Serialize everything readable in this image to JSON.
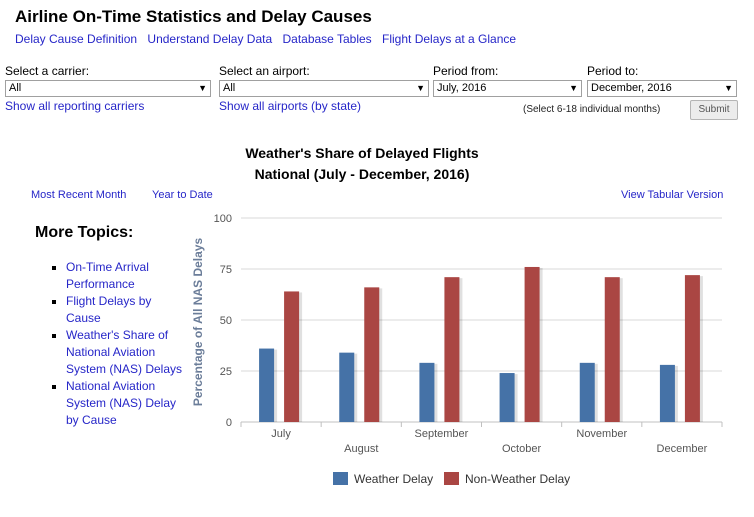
{
  "page_title": "Airline On-Time Statistics and Delay Causes",
  "nav_links": [
    "Delay Cause Definition",
    "Understand Delay Data",
    "Database Tables",
    "Flight Delays at a Glance"
  ],
  "filters": {
    "carrier_label": "Select a carrier:",
    "carrier_value": "All",
    "show_carriers_link": "Show all reporting carriers",
    "airport_label": "Select an airport:",
    "airport_value": "All",
    "show_airports_link": "Show all airports (by state)",
    "period_from_label": "Period from:",
    "period_from_value": "July, 2016",
    "period_to_label": "Period to:",
    "period_to_value": "December, 2016",
    "hint": "(Select 6-18 individual months)",
    "submit_label": "Submit"
  },
  "chart_heading": {
    "line1": "Weather's Share of Delayed Flights",
    "line2": "National (July - December, 2016)"
  },
  "sub_nav": {
    "recent": "Most Recent Month",
    "ytd": "Year to Date",
    "tabular": "View Tabular Version"
  },
  "more_topics": {
    "heading": "More Topics:",
    "items": [
      "On-Time Arrival Performance",
      "Flight Delays by Cause",
      "Weather's Share of National Aviation System (NAS) Delays",
      "National Aviation System (NAS) Delay by Cause"
    ]
  },
  "colors": {
    "weather": "#4572a7",
    "non_weather": "#aa4643",
    "link": "#2626c8"
  },
  "chart_data": {
    "type": "bar",
    "categories": [
      "July",
      "August",
      "September",
      "October",
      "November",
      "December"
    ],
    "series": [
      {
        "name": "Weather Delay",
        "values": [
          36,
          34,
          29,
          24,
          29,
          28
        ]
      },
      {
        "name": "Non-Weather Delay",
        "values": [
          64,
          66,
          71,
          76,
          71,
          72
        ]
      }
    ],
    "ylabel": "Percentage of All NAS Delays",
    "ylim": [
      0,
      100
    ],
    "yticks": [
      0,
      25,
      50,
      75,
      100
    ],
    "grid": true,
    "legend_position": "bottom"
  }
}
